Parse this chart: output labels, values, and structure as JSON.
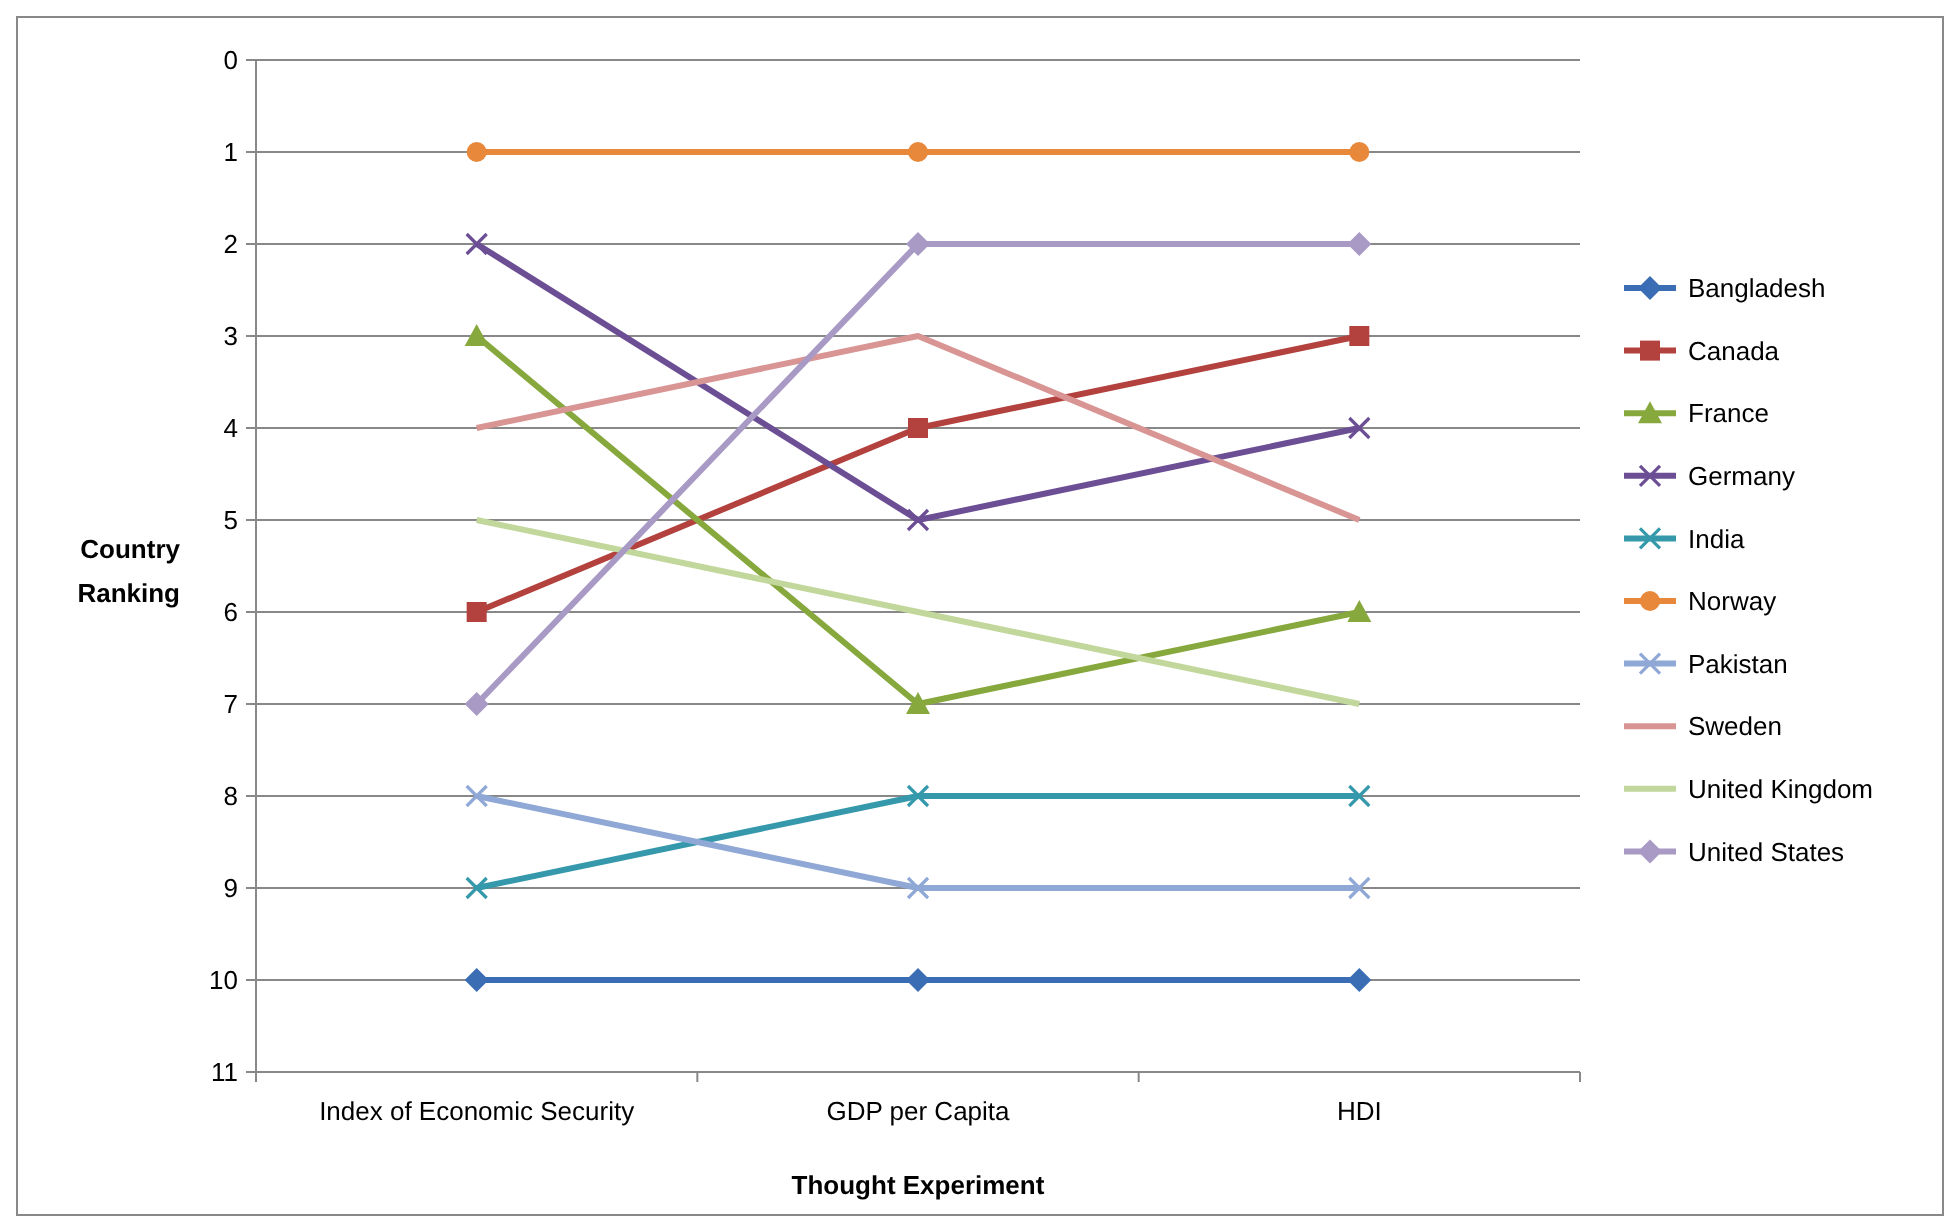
{
  "chart_data": {
    "type": "line",
    "xlabel": "Thought Experiment",
    "ylabel": "Country Ranking",
    "categories": [
      "Index of Economic Security",
      "GDP per Capita",
      "HDI"
    ],
    "ylim": [
      11,
      0
    ],
    "yticks": [
      0,
      1,
      2,
      3,
      4,
      5,
      6,
      7,
      8,
      9,
      10,
      11
    ],
    "grid": "y",
    "legend": "right",
    "series": [
      {
        "name": "Bangladesh",
        "color": "#3a6db4",
        "marker": "diamond",
        "values": [
          10,
          10,
          10
        ]
      },
      {
        "name": "Canada",
        "color": "#b3413d",
        "marker": "square",
        "values": [
          6,
          4,
          3
        ]
      },
      {
        "name": "France",
        "color": "#87a83d",
        "marker": "triangle",
        "values": [
          3,
          7,
          6
        ]
      },
      {
        "name": "Germany",
        "color": "#6b4e94",
        "marker": "cross",
        "values": [
          2,
          5,
          4
        ]
      },
      {
        "name": "India",
        "color": "#3599ab",
        "marker": "cross",
        "values": [
          9,
          8,
          8
        ]
      },
      {
        "name": "Norway",
        "color": "#e8883a",
        "marker": "circle",
        "values": [
          1,
          1,
          1
        ]
      },
      {
        "name": "Pakistan",
        "color": "#8fa8d5",
        "marker": "cross",
        "values": [
          8,
          9,
          9
        ]
      },
      {
        "name": "Sweden",
        "color": "#d89593",
        "marker": "none",
        "values": [
          4,
          3,
          5
        ]
      },
      {
        "name": "United Kingdom",
        "color": "#c2d79b",
        "marker": "none",
        "values": [
          5,
          6,
          7
        ]
      },
      {
        "name": "United States",
        "color": "#a89ac5",
        "marker": "diamond",
        "values": [
          7,
          2,
          2
        ]
      }
    ]
  }
}
